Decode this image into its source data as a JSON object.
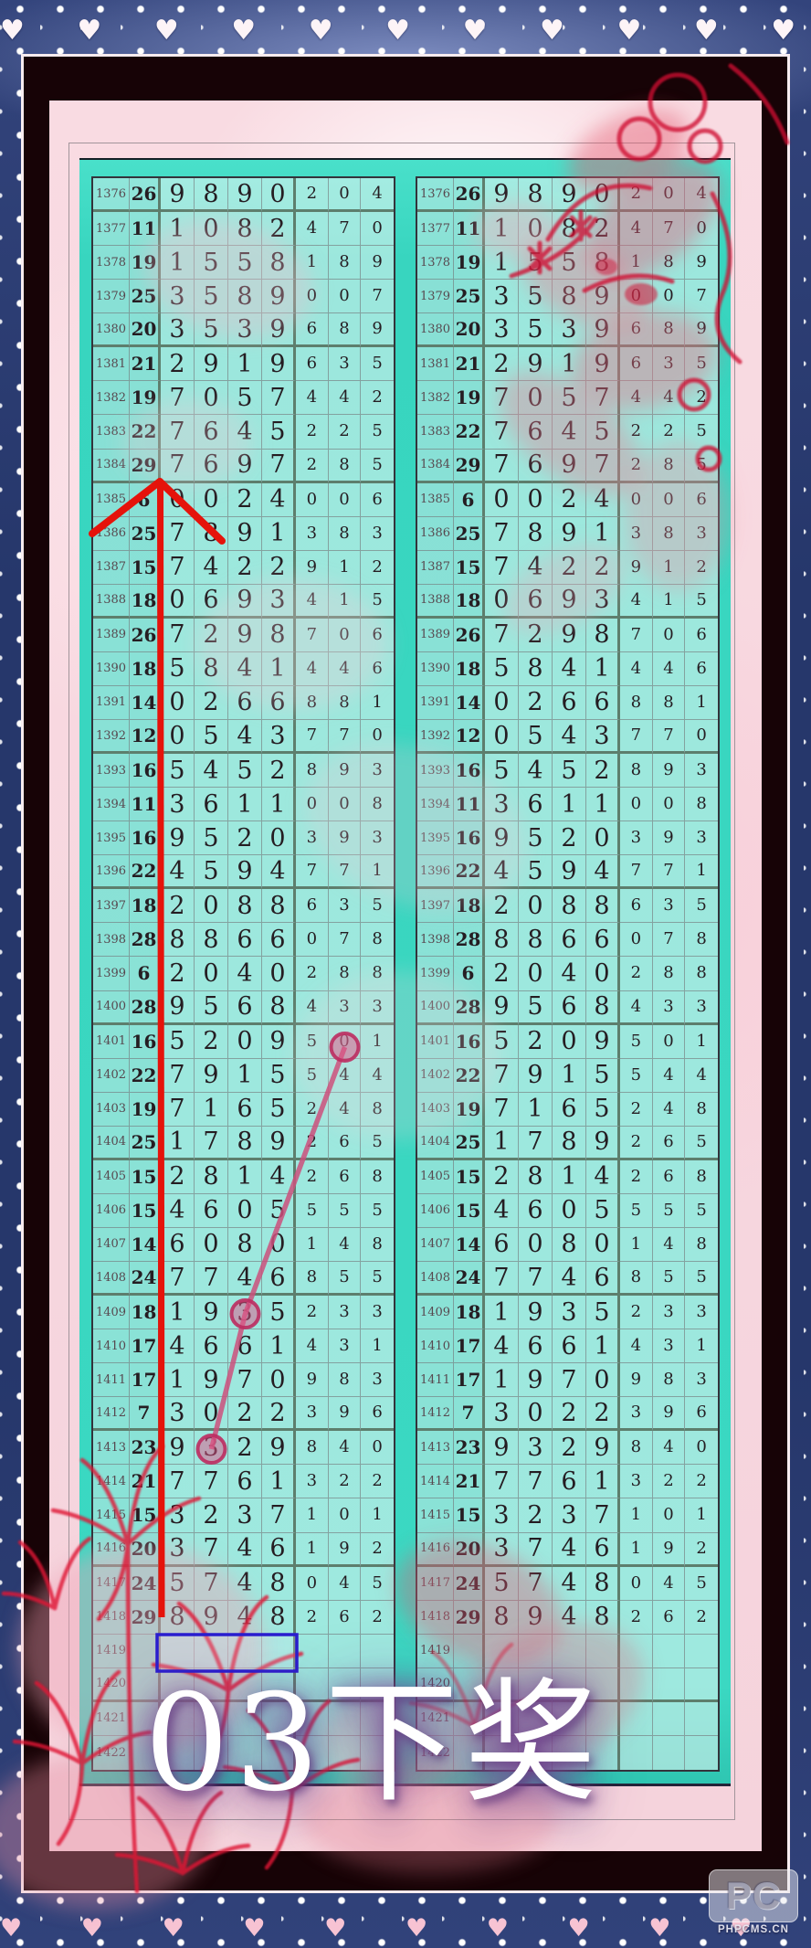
{
  "decor": {
    "hearts_top": "♥ ♥ ♥ ♥ ♥ ♥ ♥ ♥ ♥ ♥ ♥ ♥ ♥ ♥ ♥ ♥ ♥",
    "hearts_bottom": "♥ ♥ ♥ ♥ ♥ ♥ ♥ ♥ ♥ ♥ ♥ ♥ ♥"
  },
  "annotations": {
    "caption": "03下奖",
    "circled_values": [
      "0",
      "3",
      "3"
    ],
    "circled_issues": [
      "1401",
      "1409",
      "1413"
    ],
    "red_line_color": "#e5130b",
    "connector_color": "#c8597f",
    "highlight_box_color": "#2a1ecf",
    "highlight_box_issue": "1419"
  },
  "watermark": {
    "logo": "PC",
    "site": "PHPCMS.CN"
  },
  "colors": {
    "teal_frame": "#3bd8c2",
    "navy_border": "#26376b",
    "pink_background": "#f9dbe2",
    "group_separator": "#5d7e6d"
  },
  "chart_data": {
    "type": "table",
    "panels": 2,
    "rows": [
      {
        "issue": "1376",
        "sum": "26",
        "digits": [
          "9",
          "8",
          "9",
          "0"
        ],
        "extra": [
          "2",
          "0",
          "4"
        ]
      },
      {
        "issue": "1377",
        "sum": "11",
        "digits": [
          "1",
          "0",
          "8",
          "2"
        ],
        "extra": [
          "4",
          "7",
          "0"
        ]
      },
      {
        "issue": "1378",
        "sum": "19",
        "digits": [
          "1",
          "5",
          "5",
          "8"
        ],
        "extra": [
          "1",
          "8",
          "9"
        ]
      },
      {
        "issue": "1379",
        "sum": "25",
        "digits": [
          "3",
          "5",
          "8",
          "9"
        ],
        "extra": [
          "0",
          "0",
          "7"
        ]
      },
      {
        "issue": "1380",
        "sum": "20",
        "digits": [
          "3",
          "5",
          "3",
          "9"
        ],
        "extra": [
          "6",
          "8",
          "9"
        ]
      },
      {
        "issue": "1381",
        "sum": "21",
        "digits": [
          "2",
          "9",
          "1",
          "9"
        ],
        "extra": [
          "6",
          "3",
          "5"
        ]
      },
      {
        "issue": "1382",
        "sum": "19",
        "digits": [
          "7",
          "0",
          "5",
          "7"
        ],
        "extra": [
          "4",
          "4",
          "2"
        ]
      },
      {
        "issue": "1383",
        "sum": "22",
        "digits": [
          "7",
          "6",
          "4",
          "5"
        ],
        "extra": [
          "2",
          "2",
          "5"
        ]
      },
      {
        "issue": "1384",
        "sum": "29",
        "digits": [
          "7",
          "6",
          "9",
          "7"
        ],
        "extra": [
          "2",
          "8",
          "5"
        ]
      },
      {
        "issue": "1385",
        "sum": "6",
        "digits": [
          "0",
          "0",
          "2",
          "4"
        ],
        "extra": [
          "0",
          "0",
          "6"
        ]
      },
      {
        "issue": "1386",
        "sum": "25",
        "digits": [
          "7",
          "8",
          "9",
          "1"
        ],
        "extra": [
          "3",
          "8",
          "3"
        ]
      },
      {
        "issue": "1387",
        "sum": "15",
        "digits": [
          "7",
          "4",
          "2",
          "2"
        ],
        "extra": [
          "9",
          "1",
          "2"
        ]
      },
      {
        "issue": "1388",
        "sum": "18",
        "digits": [
          "0",
          "6",
          "9",
          "3"
        ],
        "extra": [
          "4",
          "1",
          "5"
        ]
      },
      {
        "issue": "1389",
        "sum": "26",
        "digits": [
          "7",
          "2",
          "9",
          "8"
        ],
        "extra": [
          "7",
          "0",
          "6"
        ]
      },
      {
        "issue": "1390",
        "sum": "18",
        "digits": [
          "5",
          "8",
          "4",
          "1"
        ],
        "extra": [
          "4",
          "4",
          "6"
        ]
      },
      {
        "issue": "1391",
        "sum": "14",
        "digits": [
          "0",
          "2",
          "6",
          "6"
        ],
        "extra": [
          "8",
          "8",
          "1"
        ]
      },
      {
        "issue": "1392",
        "sum": "12",
        "digits": [
          "0",
          "5",
          "4",
          "3"
        ],
        "extra": [
          "7",
          "7",
          "0"
        ]
      },
      {
        "issue": "1393",
        "sum": "16",
        "digits": [
          "5",
          "4",
          "5",
          "2"
        ],
        "extra": [
          "8",
          "9",
          "3"
        ]
      },
      {
        "issue": "1394",
        "sum": "11",
        "digits": [
          "3",
          "6",
          "1",
          "1"
        ],
        "extra": [
          "0",
          "0",
          "8"
        ]
      },
      {
        "issue": "1395",
        "sum": "16",
        "digits": [
          "9",
          "5",
          "2",
          "0"
        ],
        "extra": [
          "3",
          "9",
          "3"
        ]
      },
      {
        "issue": "1396",
        "sum": "22",
        "digits": [
          "4",
          "5",
          "9",
          "4"
        ],
        "extra": [
          "7",
          "7",
          "1"
        ]
      },
      {
        "issue": "1397",
        "sum": "18",
        "digits": [
          "2",
          "0",
          "8",
          "8"
        ],
        "extra": [
          "6",
          "3",
          "5"
        ]
      },
      {
        "issue": "1398",
        "sum": "28",
        "digits": [
          "8",
          "8",
          "6",
          "6"
        ],
        "extra": [
          "0",
          "7",
          "8"
        ]
      },
      {
        "issue": "1399",
        "sum": "6",
        "digits": [
          "2",
          "0",
          "4",
          "0"
        ],
        "extra": [
          "2",
          "8",
          "8"
        ]
      },
      {
        "issue": "1400",
        "sum": "28",
        "digits": [
          "9",
          "5",
          "6",
          "8"
        ],
        "extra": [
          "4",
          "3",
          "3"
        ]
      },
      {
        "issue": "1401",
        "sum": "16",
        "digits": [
          "5",
          "2",
          "0",
          "9"
        ],
        "extra": [
          "5",
          "0",
          "1"
        ]
      },
      {
        "issue": "1402",
        "sum": "22",
        "digits": [
          "7",
          "9",
          "1",
          "5"
        ],
        "extra": [
          "5",
          "4",
          "4"
        ]
      },
      {
        "issue": "1403",
        "sum": "19",
        "digits": [
          "7",
          "1",
          "6",
          "5"
        ],
        "extra": [
          "2",
          "4",
          "8"
        ]
      },
      {
        "issue": "1404",
        "sum": "25",
        "digits": [
          "1",
          "7",
          "8",
          "9"
        ],
        "extra": [
          "2",
          "6",
          "5"
        ]
      },
      {
        "issue": "1405",
        "sum": "15",
        "digits": [
          "2",
          "8",
          "1",
          "4"
        ],
        "extra": [
          "2",
          "6",
          "8"
        ]
      },
      {
        "issue": "1406",
        "sum": "15",
        "digits": [
          "4",
          "6",
          "0",
          "5"
        ],
        "extra": [
          "5",
          "5",
          "5"
        ]
      },
      {
        "issue": "1407",
        "sum": "14",
        "digits": [
          "6",
          "0",
          "8",
          "0"
        ],
        "extra": [
          "1",
          "4",
          "8"
        ]
      },
      {
        "issue": "1408",
        "sum": "24",
        "digits": [
          "7",
          "7",
          "4",
          "6"
        ],
        "extra": [
          "8",
          "5",
          "5"
        ]
      },
      {
        "issue": "1409",
        "sum": "18",
        "digits": [
          "1",
          "9",
          "3",
          "5"
        ],
        "extra": [
          "2",
          "3",
          "3"
        ]
      },
      {
        "issue": "1410",
        "sum": "17",
        "digits": [
          "4",
          "6",
          "6",
          "1"
        ],
        "extra": [
          "4",
          "3",
          "1"
        ]
      },
      {
        "issue": "1411",
        "sum": "17",
        "digits": [
          "1",
          "9",
          "7",
          "0"
        ],
        "extra": [
          "9",
          "8",
          "3"
        ]
      },
      {
        "issue": "1412",
        "sum": "7",
        "digits": [
          "3",
          "0",
          "2",
          "2"
        ],
        "extra": [
          "3",
          "9",
          "6"
        ]
      },
      {
        "issue": "1413",
        "sum": "23",
        "digits": [
          "9",
          "3",
          "2",
          "9"
        ],
        "extra": [
          "8",
          "4",
          "0"
        ]
      },
      {
        "issue": "1414",
        "sum": "21",
        "digits": [
          "7",
          "7",
          "6",
          "1"
        ],
        "extra": [
          "3",
          "2",
          "2"
        ]
      },
      {
        "issue": "1415",
        "sum": "15",
        "digits": [
          "3",
          "2",
          "3",
          "7"
        ],
        "extra": [
          "1",
          "0",
          "1"
        ]
      },
      {
        "issue": "1416",
        "sum": "20",
        "digits": [
          "3",
          "7",
          "4",
          "6"
        ],
        "extra": [
          "1",
          "9",
          "2"
        ]
      },
      {
        "issue": "1417",
        "sum": "24",
        "digits": [
          "5",
          "7",
          "4",
          "8"
        ],
        "extra": [
          "0",
          "4",
          "5"
        ]
      },
      {
        "issue": "1418",
        "sum": "29",
        "digits": [
          "8",
          "9",
          "4",
          "8"
        ],
        "extra": [
          "2",
          "6",
          "2"
        ]
      },
      {
        "issue": "1419",
        "sum": "",
        "digits": [
          "",
          "",
          "",
          ""
        ],
        "extra": [
          "",
          "",
          ""
        ]
      },
      {
        "issue": "1420",
        "sum": "",
        "digits": [
          "",
          "",
          "",
          ""
        ],
        "extra": [
          "",
          "",
          ""
        ]
      },
      {
        "issue": "1421",
        "sum": "",
        "digits": [
          "",
          "",
          "",
          ""
        ],
        "extra": [
          "",
          "",
          ""
        ]
      },
      {
        "issue": "1422",
        "sum": "",
        "digits": [
          "",
          "",
          "",
          ""
        ],
        "extra": [
          "",
          "",
          ""
        ]
      }
    ]
  }
}
